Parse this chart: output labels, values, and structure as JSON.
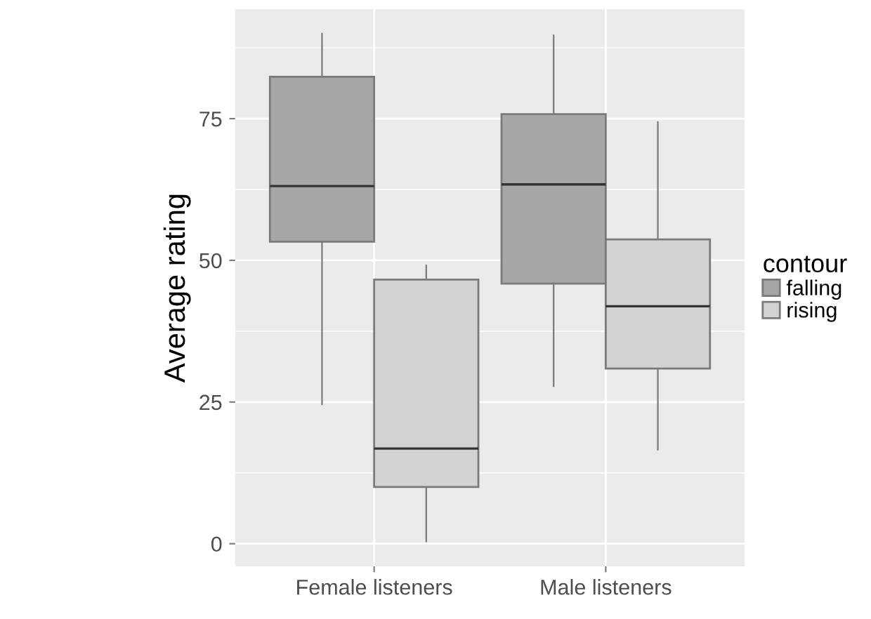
{
  "chart_data": {
    "type": "box",
    "ylabel": "Average rating",
    "legend_title": "contour",
    "legend": "right",
    "grid": true,
    "categories": [
      "Female listeners",
      "Male listeners"
    ],
    "ylim": [
      -4,
      94.3
    ],
    "yticks": [
      0,
      25,
      50,
      75
    ],
    "series": [
      {
        "name": "falling",
        "color": "#a6a6a6",
        "boxes": [
          {
            "low": 24.6,
            "q1": 53.3,
            "median": 63.1,
            "q3": 82.4,
            "high": 90.0
          },
          {
            "low": 27.8,
            "q1": 45.9,
            "median": 63.4,
            "q3": 75.8,
            "high": 89.7
          }
        ]
      },
      {
        "name": "rising",
        "color": "#d3d3d3",
        "boxes": [
          {
            "low": 0.4,
            "q1": 10.0,
            "median": 16.8,
            "q3": 46.6,
            "high": 49.1
          },
          {
            "low": 16.6,
            "q1": 30.9,
            "median": 41.9,
            "q3": 53.7,
            "high": 74.4
          }
        ]
      }
    ]
  }
}
